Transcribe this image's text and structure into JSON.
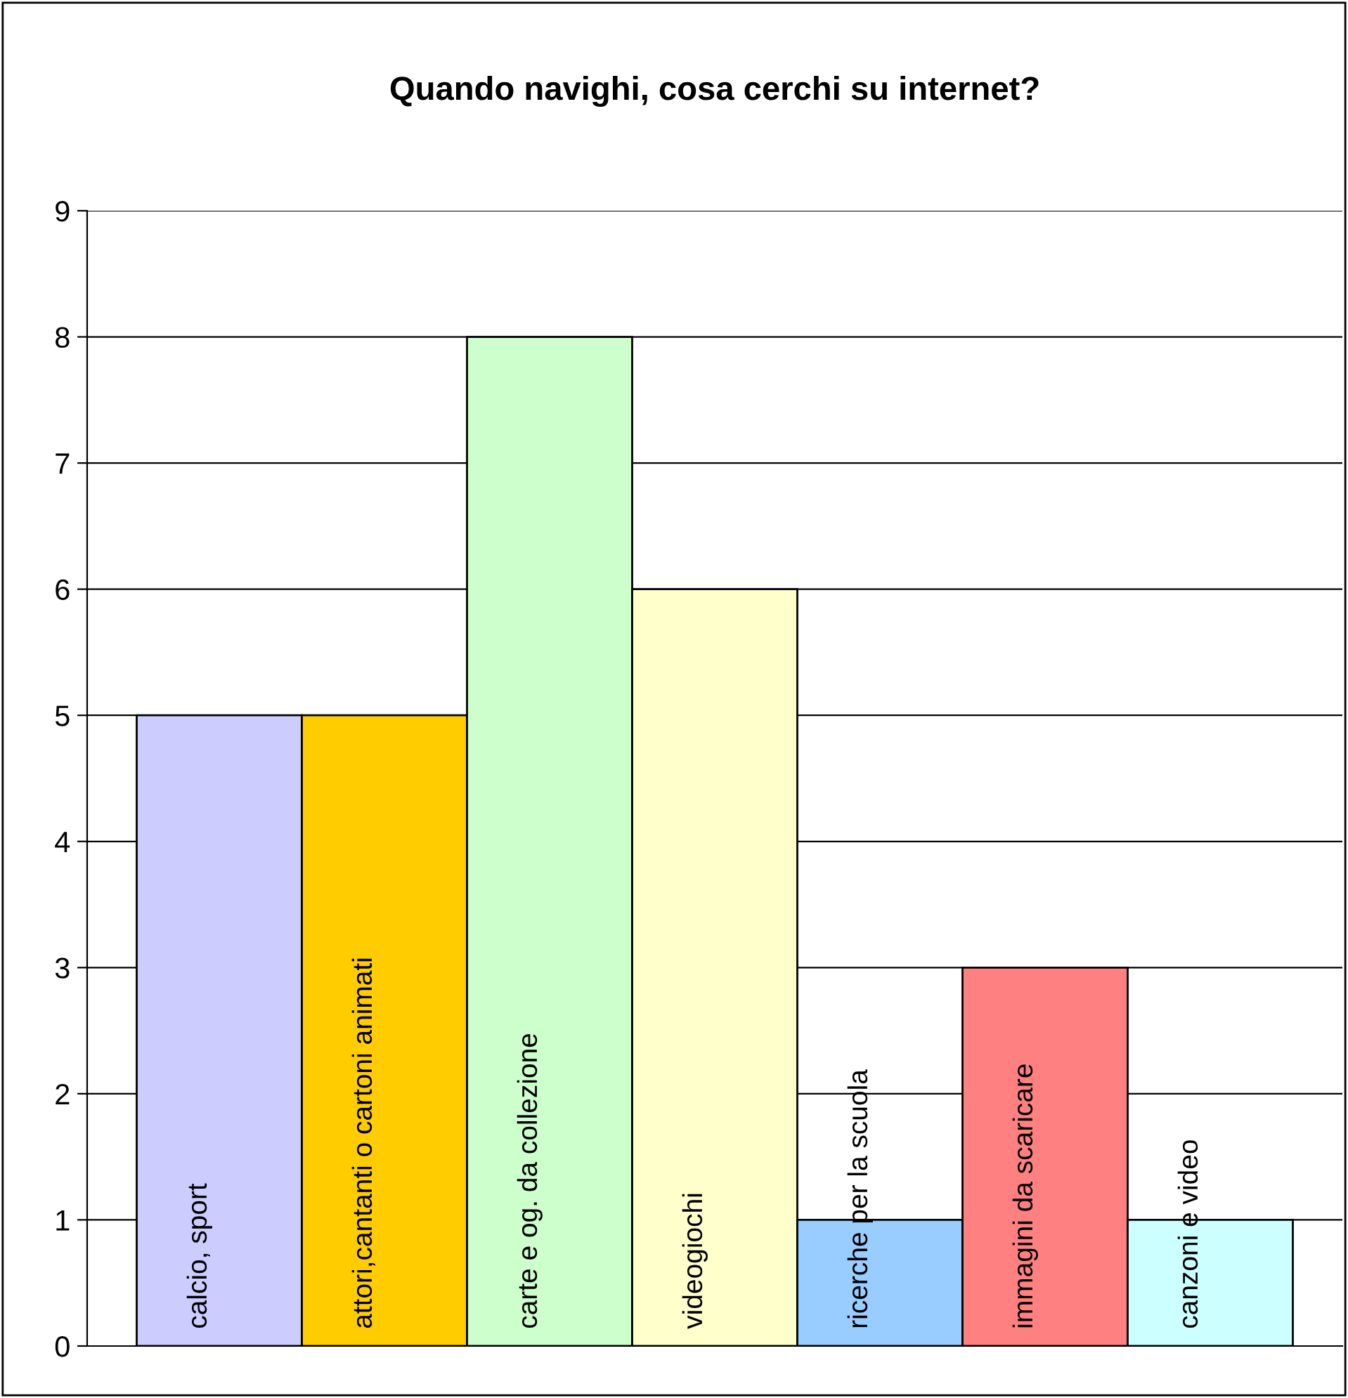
{
  "chart_data": {
    "type": "bar",
    "title": "Quando navighi, cosa cerchi su internet?",
    "categories": [
      "calcio, sport",
      "attori,cantanti o cartoni animati",
      "carte e og. da collezione",
      "videogiochi",
      "ricerche per la scuola",
      "immagini da scaricare",
      "canzoni e video"
    ],
    "values": [
      5,
      5,
      8,
      6,
      1,
      3,
      1
    ],
    "colors": [
      "#ccccff",
      "#ffcc00",
      "#ccffcc",
      "#ffffcc",
      "#99ccff",
      "#ff8080",
      "#ccffff"
    ],
    "ylim": [
      0,
      9
    ],
    "yticks": [
      0,
      1,
      2,
      3,
      4,
      5,
      6,
      7,
      8,
      9
    ],
    "grid": "y",
    "legend": false
  }
}
